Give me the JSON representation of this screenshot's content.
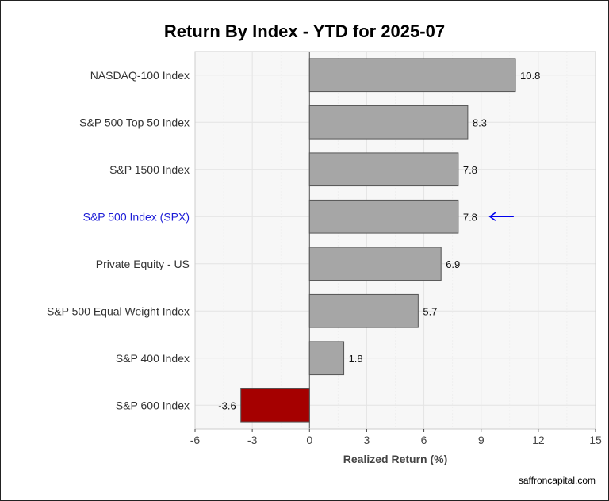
{
  "chart_data": {
    "type": "bar",
    "orientation": "horizontal",
    "title": "Return By Index - YTD for 2025-07",
    "xlabel": "Realized Return (%)",
    "ylabel": "",
    "categories": [
      "NASDAQ-100 Index",
      "S&P 500 Top 50 Index",
      "S&P 1500 Index",
      "S&P 500 Index (SPX)",
      "Private Equity - US",
      "S&P 500 Equal Weight Index",
      "S&P 400 Index",
      "S&P 600 Index"
    ],
    "values": [
      10.8,
      8.3,
      7.8,
      7.8,
      6.9,
      5.7,
      1.8,
      -3.6
    ],
    "value_labels": [
      "10.8",
      "8.3",
      "7.8",
      "7.8",
      "6.9",
      "5.7",
      "1.8",
      "-3.6"
    ],
    "xlim": [
      -6,
      15
    ],
    "xticks": [
      -6,
      -3,
      0,
      3,
      6,
      9,
      12,
      15
    ],
    "highlight_index": 3,
    "highlight_marker": "left-arrow",
    "grid": true,
    "legend": "none",
    "colors": {
      "positive": "#a6a6a6",
      "negative": "#a50000",
      "bar_outline": "#555555",
      "highlight_label": "#1a1ad6",
      "arrow": "#0000ee",
      "label": "#333333",
      "grid": "#e4e4e4",
      "panel": "#f7f7f7"
    }
  },
  "footer": {
    "source": "saffroncapital.com"
  }
}
